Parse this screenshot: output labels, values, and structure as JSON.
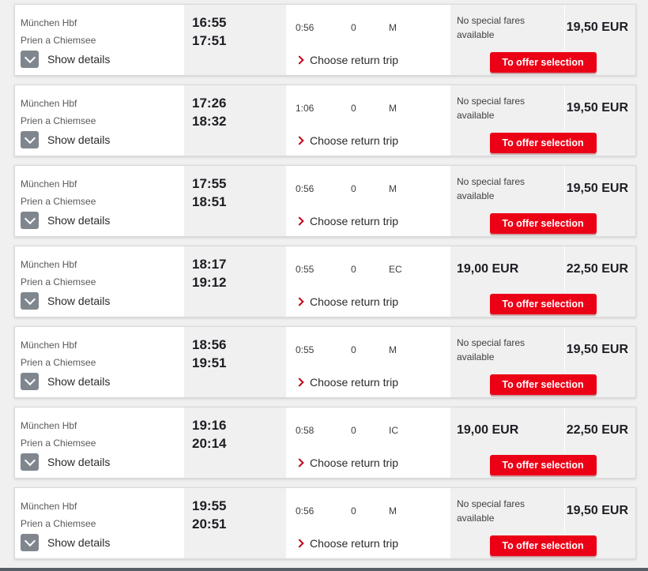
{
  "labels": {
    "show_details": "Show details",
    "choose_return_trip": "Choose return trip",
    "to_offer_selection": "To offer selection",
    "no_special_fares": "No special fares available"
  },
  "colors": {
    "accent_red": "#ec0016",
    "link_arrow_red": "#c00014",
    "shaded_section_bg": "#f0f0f0",
    "chevron_button_gray": "#7f868e",
    "price_text": "#1d1d24"
  },
  "connections": [
    {
      "origin": "München Hbf",
      "destination": "Prien a Chiemsee",
      "departure": "16:55",
      "arrival": "17:51",
      "duration": "0:56",
      "changes": "0",
      "products": "M",
      "special_fare": null,
      "price": "19,50 EUR"
    },
    {
      "origin": "München Hbf",
      "destination": "Prien a Chiemsee",
      "departure": "17:26",
      "arrival": "18:32",
      "duration": "1:06",
      "changes": "0",
      "products": "M",
      "special_fare": null,
      "price": "19,50 EUR"
    },
    {
      "origin": "München Hbf",
      "destination": "Prien a Chiemsee",
      "departure": "17:55",
      "arrival": "18:51",
      "duration": "0:56",
      "changes": "0",
      "products": "M",
      "special_fare": null,
      "price": "19,50 EUR"
    },
    {
      "origin": "München Hbf",
      "destination": "Prien a Chiemsee",
      "departure": "18:17",
      "arrival": "19:12",
      "duration": "0:55",
      "changes": "0",
      "products": "EC",
      "special_fare": "19,00 EUR",
      "price": "22,50 EUR"
    },
    {
      "origin": "München Hbf",
      "destination": "Prien a Chiemsee",
      "departure": "18:56",
      "arrival": "19:51",
      "duration": "0:55",
      "changes": "0",
      "products": "M",
      "special_fare": null,
      "price": "19,50 EUR"
    },
    {
      "origin": "München Hbf",
      "destination": "Prien a Chiemsee",
      "departure": "19:16",
      "arrival": "20:14",
      "duration": "0:58",
      "changes": "0",
      "products": "IC",
      "special_fare": "19,00 EUR",
      "price": "22,50 EUR"
    },
    {
      "origin": "München Hbf",
      "destination": "Prien a Chiemsee",
      "departure": "19:55",
      "arrival": "20:51",
      "duration": "0:56",
      "changes": "0",
      "products": "M",
      "special_fare": null,
      "price": "19,50 EUR"
    }
  ]
}
